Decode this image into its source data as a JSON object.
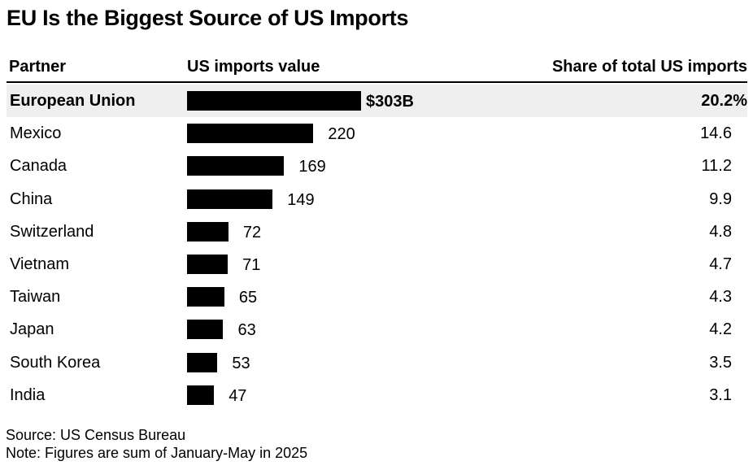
{
  "chart_data": {
    "type": "bar",
    "title": "EU Is the Biggest Source of US Imports",
    "columns": [
      "Partner",
      "US imports value",
      "Share of total US imports"
    ],
    "categories": [
      "European Union",
      "Mexico",
      "Canada",
      "China",
      "Switzerland",
      "Vietnam",
      "Taiwan",
      "Japan",
      "South Korea",
      "India"
    ],
    "series": [
      {
        "name": "US imports value",
        "values": [
          303,
          220,
          169,
          149,
          72,
          71,
          65,
          63,
          53,
          47
        ]
      },
      {
        "name": "Share of total US imports",
        "values": [
          20.2,
          14.6,
          11.2,
          9.9,
          4.8,
          4.7,
          4.3,
          4.2,
          3.5,
          3.1
        ]
      }
    ],
    "value_labels": [
      "$303B",
      "220",
      "169",
      "149",
      "72",
      "71",
      "65",
      "63",
      "53",
      "47"
    ],
    "share_labels": [
      "20.2%",
      "14.6",
      "11.2",
      "9.9",
      "4.8",
      "4.7",
      "4.3",
      "4.2",
      "3.5",
      "3.1"
    ],
    "highlight": "European Union",
    "bar_color": "#000000",
    "highlight_row_color": "#efefef",
    "source": "Source: US Census Bureau",
    "note": "Note: Figures are sum of January-May in 2025"
  }
}
